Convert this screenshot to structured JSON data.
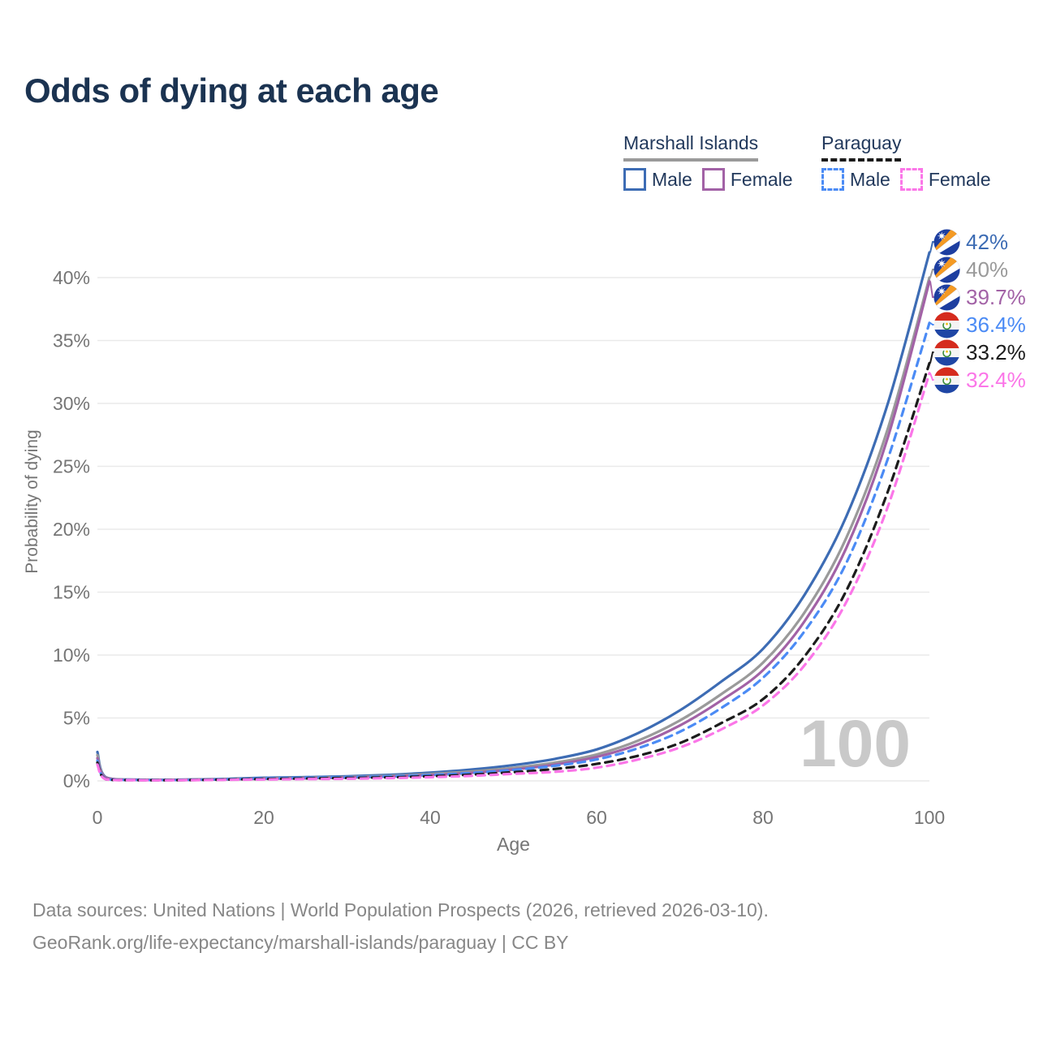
{
  "page": {
    "title": "Odds of dying at each age"
  },
  "legend": {
    "groups": [
      {
        "name": "Marshall Islands",
        "line_style": "solid",
        "line_color": "#9a9a9a",
        "items": [
          {
            "label": "Male",
            "color": "#3d6cb4",
            "dash": false
          },
          {
            "label": "Female",
            "color": "#a262a6",
            "dash": false
          }
        ]
      },
      {
        "name": "Paraguay",
        "line_style": "dashed",
        "line_color": "#1a1a1a",
        "items": [
          {
            "label": "Male",
            "color": "#4b8bf5",
            "dash": true
          },
          {
            "label": "Female",
            "color": "#fb76e8",
            "dash": true
          }
        ]
      }
    ]
  },
  "chart_data": {
    "type": "line",
    "title": "Odds of dying at each age",
    "xlabel": "Age",
    "ylabel": "Probability of dying",
    "xlim": [
      0,
      100
    ],
    "ylim_pct": [
      0,
      43
    ],
    "x_ticks": [
      0,
      20,
      40,
      60,
      80,
      100
    ],
    "y_ticks_pct": [
      0,
      5,
      10,
      15,
      20,
      25,
      30,
      35,
      40
    ],
    "y_tick_suffix": "%",
    "grid": "horizontal",
    "legend_position": "top-right",
    "watermark_age": "100",
    "ages": [
      0,
      1,
      5,
      10,
      15,
      20,
      25,
      30,
      35,
      40,
      45,
      50,
      55,
      60,
      65,
      70,
      75,
      80,
      85,
      90,
      95,
      100
    ],
    "series": [
      {
        "name": "Marshall Islands Male",
        "flag": "marshall-islands",
        "color": "#3d6cb4",
        "dash": false,
        "end_label": "42%",
        "end_value_pct": 42.0,
        "values_pct": [
          2.3,
          0.3,
          0.1,
          0.1,
          0.15,
          0.25,
          0.3,
          0.37,
          0.48,
          0.65,
          0.9,
          1.25,
          1.75,
          2.5,
          3.8,
          5.6,
          7.9,
          10.5,
          14.8,
          21.0,
          30.0,
          42.0
        ]
      },
      {
        "name": "Marshall Islands Both sexes",
        "flag": "marshall-islands",
        "color": "#9a9a9a",
        "dash": false,
        "end_label": "40%",
        "end_value_pct": 40.0,
        "values_pct": [
          2.05,
          0.27,
          0.09,
          0.09,
          0.13,
          0.2,
          0.25,
          0.31,
          0.4,
          0.54,
          0.75,
          1.03,
          1.45,
          2.1,
          3.2,
          4.8,
          6.9,
          9.4,
          13.4,
          19.3,
          28.0,
          40.0
        ]
      },
      {
        "name": "Marshall Islands Female",
        "flag": "marshall-islands",
        "color": "#a262a6",
        "dash": false,
        "end_label": "39.7%",
        "end_value_pct": 39.7,
        "values_pct": [
          1.8,
          0.25,
          0.08,
          0.08,
          0.11,
          0.16,
          0.2,
          0.26,
          0.34,
          0.46,
          0.64,
          0.9,
          1.3,
          1.9,
          2.9,
          4.4,
          6.4,
          8.8,
          12.7,
          18.5,
          27.3,
          39.7
        ]
      },
      {
        "name": "Paraguay Male",
        "flag": "paraguay",
        "color": "#4b8bf5",
        "dash": true,
        "end_label": "36.4%",
        "end_value_pct": 36.4,
        "values_pct": [
          1.6,
          0.15,
          0.07,
          0.07,
          0.12,
          0.2,
          0.25,
          0.3,
          0.36,
          0.47,
          0.63,
          0.87,
          1.2,
          1.7,
          2.6,
          3.9,
          5.8,
          8.2,
          11.9,
          17.3,
          25.6,
          36.4
        ]
      },
      {
        "name": "Paraguay Both sexes",
        "flag": "paraguay",
        "color": "#1c1c1c",
        "dash": true,
        "end_label": "33.2%",
        "end_value_pct": 33.2,
        "values_pct": [
          1.45,
          0.13,
          0.06,
          0.06,
          0.1,
          0.15,
          0.19,
          0.23,
          0.28,
          0.37,
          0.5,
          0.69,
          0.95,
          1.35,
          2.0,
          3.0,
          4.6,
          6.5,
          9.9,
          15.1,
          23.0,
          33.2
        ]
      },
      {
        "name": "Paraguay Female",
        "flag": "paraguay",
        "color": "#fb76e8",
        "dash": true,
        "end_label": "32.4%",
        "end_value_pct": 32.4,
        "values_pct": [
          1.3,
          0.12,
          0.05,
          0.05,
          0.08,
          0.11,
          0.14,
          0.17,
          0.22,
          0.29,
          0.4,
          0.56,
          0.72,
          1.05,
          1.7,
          2.65,
          4.1,
          6.0,
          9.2,
          14.2,
          21.8,
          32.4
        ]
      }
    ]
  },
  "icons": {
    "flag_icons": [
      "marshall-islands-flag-icon",
      "paraguay-flag-icon"
    ]
  },
  "colors": {
    "title_text": "#1b3351",
    "legend_text": "#22395c",
    "axis_text": "#757575",
    "grid_line": "#eaeaea",
    "watermark": "#c9c9c9",
    "footer_text": "#878787"
  },
  "footer": {
    "line1": "Data sources: United Nations | World Population Prospects (2026, retrieved 2026-03-10).",
    "line2": "GeoRank.org/life-expectancy/marshall-islands/paraguay | CC BY"
  }
}
